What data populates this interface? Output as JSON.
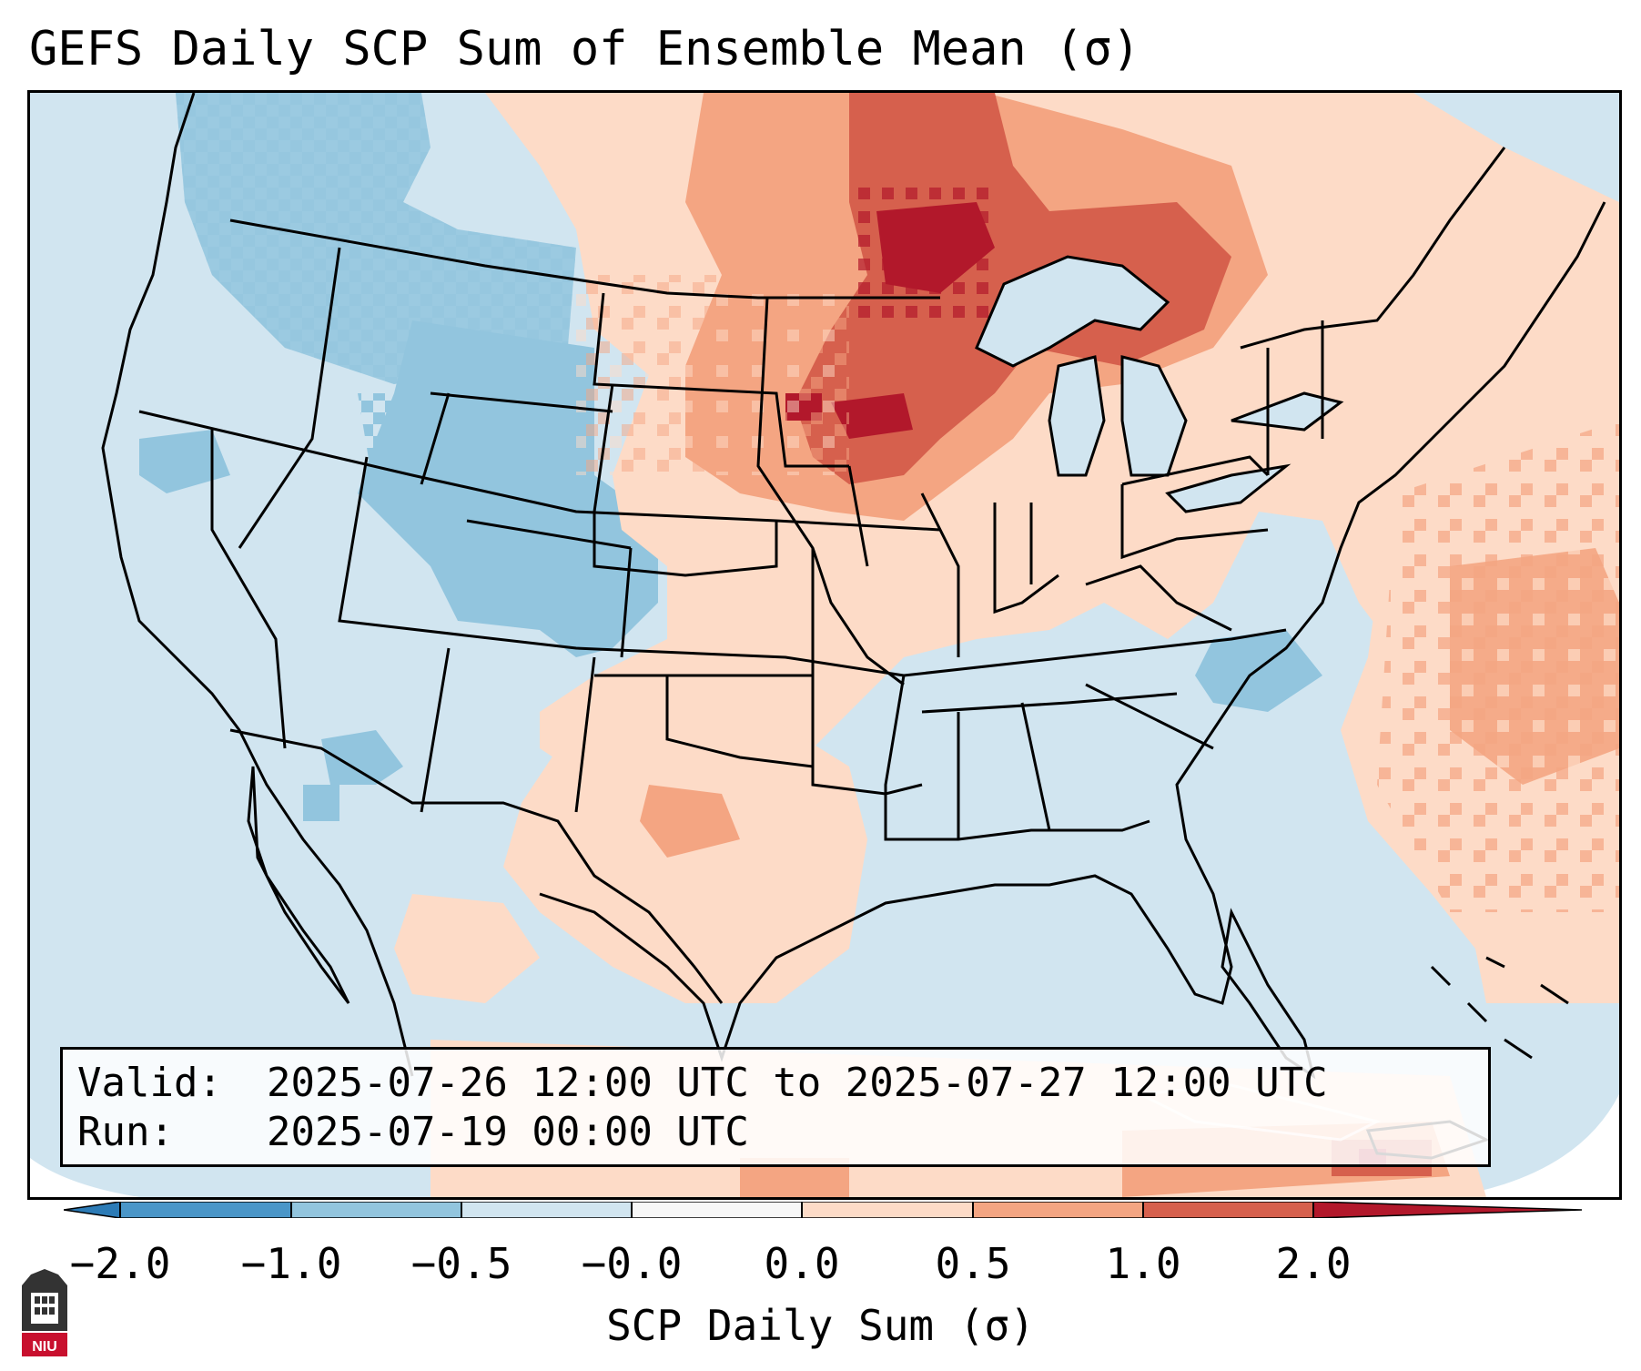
{
  "title": "GEFS Daily SCP Sum of Ensemble Mean (σ)",
  "info": {
    "valid_label": "Valid:",
    "valid_value": "2025-07-26 12:00 UTC to 2025-07-27 12:00 UTC",
    "run_label": "Run:",
    "run_value": "2025-07-19 00:00 UTC"
  },
  "colorbar": {
    "label": "SCP Daily Sum (σ)",
    "ticks": [
      "−2.0",
      "−1.0",
      "−0.5",
      "−0.0",
      "0.0",
      "0.5",
      "1.0",
      "2.0"
    ],
    "bins": [
      {
        "range": "< -2.0",
        "color": "#2c7bb6"
      },
      {
        "range": "-2.0 to -1.0",
        "color": "#4a96c8"
      },
      {
        "range": "-1.0 to -0.5",
        "color": "#92c5de"
      },
      {
        "range": "-0.5 to -0.0",
        "color": "#d1e5f0"
      },
      {
        "range": "-0.0 to 0.0",
        "color": "#f7f7f7"
      },
      {
        "range": "0.0 to 0.5",
        "color": "#fddbc7"
      },
      {
        "range": "0.5 to 1.0",
        "color": "#f4a582"
      },
      {
        "range": "1.0 to 2.0",
        "color": "#d6604d"
      },
      {
        "range": "> 2.0",
        "color": "#b2182b"
      }
    ]
  },
  "regions": [
    {
      "name": "Pacific Northwest / Northern Rockies",
      "category": "-1.0 to -0.5"
    },
    {
      "name": "Wyoming / Colorado / Utah",
      "category": "-1.0 to -0.5"
    },
    {
      "name": "Northern Plains / Upper Midwest",
      "category": "1.0 to 2.0"
    },
    {
      "name": "Northern Minnesota / Ontario",
      "category": "> 2.0"
    },
    {
      "name": "Great Lakes / Southern Ontario",
      "category": "0.5 to 1.0"
    },
    {
      "name": "Texas Panhandle / Oklahoma",
      "category": "0.5 to 1.0"
    },
    {
      "name": "Western Atlantic",
      "category": "0.5 to 1.0"
    },
    {
      "name": "Carolinas (Appalachians)",
      "category": "-1.0 to -0.5"
    },
    {
      "name": "Southeast US",
      "category": "-0.5 to -0.0"
    },
    {
      "name": "Hispaniola",
      "category": "> 2.0"
    }
  ],
  "logo_text": "NIU"
}
